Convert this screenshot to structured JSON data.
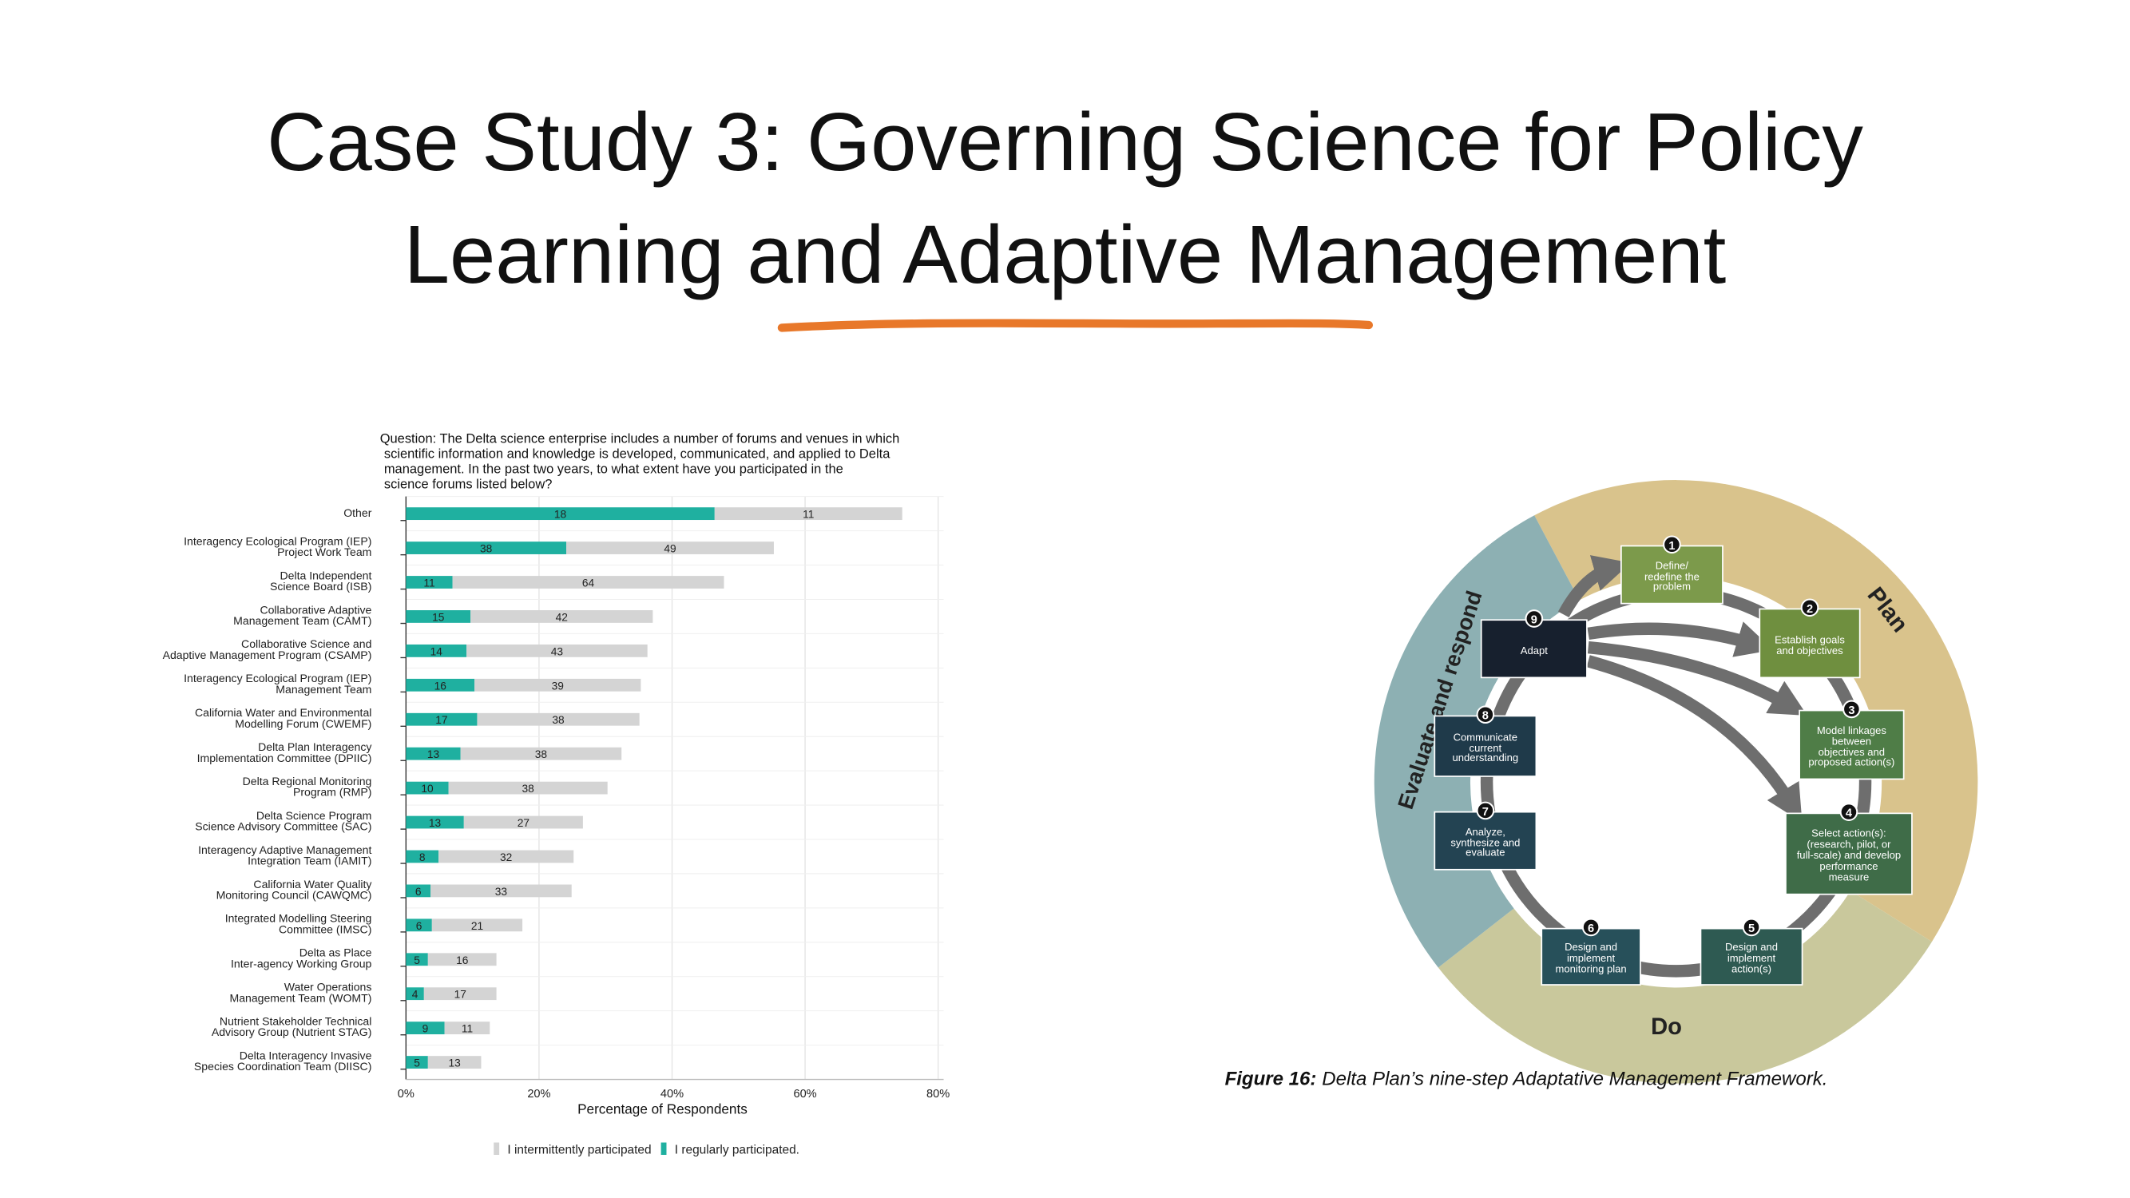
{
  "slide": {
    "title": [
      "Case Study 3: Governing Science for Policy",
      "Learning and Adaptive Management"
    ]
  },
  "chart_data": {
    "type": "bar",
    "orientation": "horizontal",
    "stacked": true,
    "question": [
      "Question: The Delta science enterprise includes a number of forums and venues in which",
      "scientific information and knowledge is developed, communicated, and applied to Delta",
      "management. In the past two years, to what extent have you participated in the",
      "science forums listed below?"
    ],
    "categories": [
      "Other",
      "Interagency Ecological Program (IEP)\nProject Work Team",
      "Delta Independent\nScience Board (ISB)",
      "Collaborative Adaptive\nManagement Team (CAMT)",
      "Collaborative Science and\nAdaptive Management Program (CSAMP)",
      "Interagency Ecological Program (IEP)\nManagement Team",
      "California Water and Environmental\nModelling Forum (CWEMF)",
      "Delta Plan Interagency\nImplementation Committee (DPIIC)",
      "Delta Regional Monitoring\nProgram (RMP)",
      "Delta Science Program\nScience Advisory Committee (SAC)",
      "Interagency Adaptive Management\nIntegration Team (IAMIT)",
      "California Water Quality\nMonitoring Council (CAWQMC)",
      "Integrated Modelling Steering\nCommittee (IMSC)",
      "Delta as Place\nInter-agency Working Group",
      "Water Operations\nManagement Team (WOMT)",
      "Nutrient Stakeholder Technical\nAdvisory Group (Nutrient STAG)",
      "Delta Interagency Invasive\nSpecies Coordination Team (DIISC)"
    ],
    "series": [
      {
        "name": "I regularly participated.",
        "color": "#1fb0a0",
        "values": [
          46.4,
          24.1,
          7.0,
          9.7,
          9.1,
          10.3,
          10.7,
          8.2,
          6.4,
          8.7,
          4.9,
          3.7,
          3.9,
          3.3,
          2.7,
          5.8,
          3.3
        ],
        "counts": [
          18,
          38,
          11,
          15,
          14,
          16,
          17,
          13,
          10,
          13,
          8,
          6,
          6,
          5,
          4,
          9,
          5
        ]
      },
      {
        "name": "I intermittently participated",
        "color": "#d4d4d4",
        "values": [
          28.2,
          31.2,
          40.8,
          27.4,
          27.2,
          25.0,
          24.4,
          24.2,
          23.9,
          17.9,
          20.3,
          21.2,
          13.6,
          10.3,
          10.9,
          6.8,
          8.0
        ],
        "counts": [
          11,
          49,
          64,
          42,
          43,
          39,
          38,
          38,
          38,
          27,
          32,
          33,
          21,
          16,
          17,
          11,
          13
        ]
      }
    ],
    "xlim": [
      0,
      80
    ],
    "xticks": [
      {
        "value": 0,
        "label": "0%"
      },
      {
        "value": 20,
        "label": "20%"
      },
      {
        "value": 40,
        "label": "40%"
      },
      {
        "value": 60,
        "label": "60%"
      },
      {
        "value": 80,
        "label": "80%"
      }
    ],
    "xlabel": "Percentage of Respondents",
    "grid": true
  },
  "diagram": {
    "regions": [
      {
        "label": "Plan",
        "color": "#d9c38c"
      },
      {
        "label": "Do",
        "color": "#c9c89c"
      },
      {
        "label": "Evaluate and respond",
        "color": "#8db0b3"
      }
    ],
    "steps": [
      {
        "number": 1,
        "label": "Define/\nredefine the\nproblem",
        "color": "#7c9a4b"
      },
      {
        "number": 2,
        "label": "Establish goals\nand objectives",
        "color": "#6f8f3f"
      },
      {
        "number": 3,
        "label": "Model linkages\nbetween\nobjectives and\nproposed action(s)",
        "color": "#4f7d47"
      },
      {
        "number": 4,
        "label": "Select action(s):\n(research, pilot, or\nfull-scale) and develop\nperformance\nmeasure",
        "color": "#3f6c48"
      },
      {
        "number": 5,
        "label": "Design and\nimplement\naction(s)",
        "color": "#2e5a52"
      },
      {
        "number": 6,
        "label": "Design and\nimplement\nmonitoring plan",
        "color": "#27505a"
      },
      {
        "number": 7,
        "label": "Analyze,\nsynthesize and\nevaluate",
        "color": "#234352"
      },
      {
        "number": 8,
        "label": "Communicate\ncurrent\nunderstanding",
        "color": "#1f3a4a"
      },
      {
        "number": 9,
        "label": "Adapt",
        "color": "#17202e"
      }
    ],
    "caption": {
      "label": "Figure 16:",
      "text": "Delta Plan’s nine-step Adaptative Management Framework."
    }
  }
}
